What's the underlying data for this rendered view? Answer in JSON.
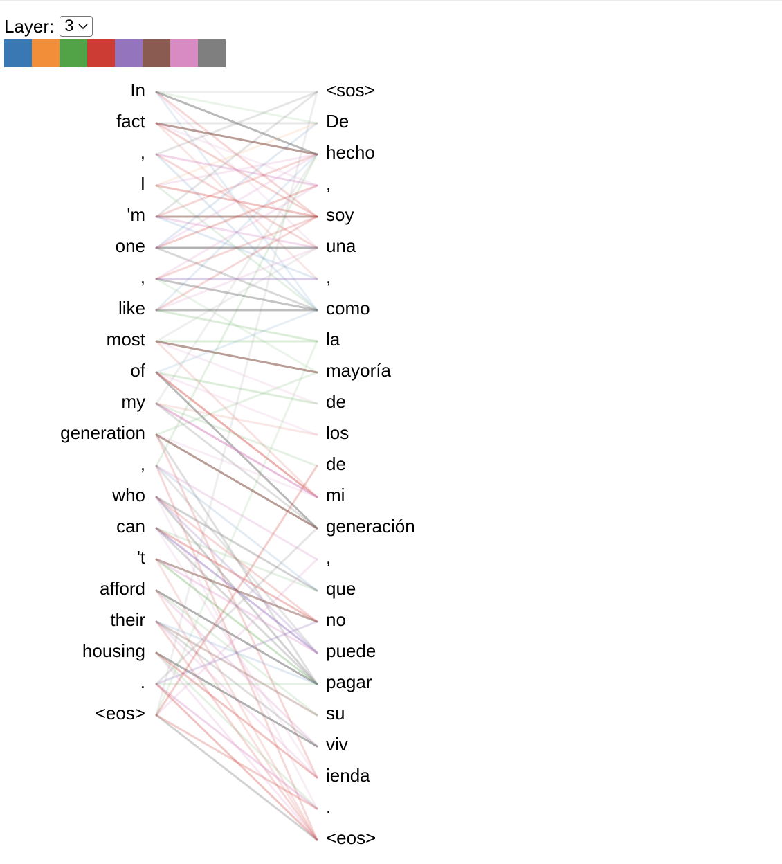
{
  "controls": {
    "layer_label": "Layer:",
    "layer_value": "3",
    "head_colors": [
      "#3a78b3",
      "#f28d3a",
      "#52a347",
      "#cd3b35",
      "#9474bc",
      "#8a5b51",
      "#d88ac2",
      "#7f7f7f"
    ]
  },
  "source_tokens": [
    "In",
    "fact",
    ",",
    "I",
    "'m",
    "one",
    ",",
    "like",
    "most",
    "of",
    "my",
    "generation",
    ",",
    "who",
    "can",
    "'t",
    "afford",
    "their",
    "housing",
    ".",
    "<eos>"
  ],
  "target_tokens": [
    "<sos>",
    "De",
    "hecho",
    ",",
    "soy",
    "una",
    ",",
    "como",
    "la",
    "mayoría",
    "de",
    "los",
    "de",
    "mi",
    "generación",
    ",",
    "que",
    "no",
    "puede",
    "pagar",
    "su",
    "viv",
    "ienda",
    ".",
    "<eos>"
  ],
  "attention_links": [
    {
      "s": 0,
      "t": 2,
      "w": 0.55,
      "c": "#7f7f7f"
    },
    {
      "s": 0,
      "t": 0,
      "w": 0.12,
      "c": "#7f7f7f"
    },
    {
      "s": 0,
      "t": 4,
      "w": 0.2,
      "c": "#cd3b35"
    },
    {
      "s": 0,
      "t": 5,
      "w": 0.15,
      "c": "#d88ac2"
    },
    {
      "s": 0,
      "t": 1,
      "w": 0.12,
      "c": "#52a347"
    },
    {
      "s": 0,
      "t": 7,
      "w": 0.12,
      "c": "#3a78b3"
    },
    {
      "s": 1,
      "t": 2,
      "w": 0.6,
      "c": "#8a5b51"
    },
    {
      "s": 1,
      "t": 1,
      "w": 0.18,
      "c": "#7f7f7f"
    },
    {
      "s": 1,
      "t": 4,
      "w": 0.22,
      "c": "#cd3b35"
    },
    {
      "s": 1,
      "t": 3,
      "w": 0.15,
      "c": "#d88ac2"
    },
    {
      "s": 1,
      "t": 6,
      "w": 0.12,
      "c": "#cd3b35"
    },
    {
      "s": 2,
      "t": 3,
      "w": 0.35,
      "c": "#d88ac2"
    },
    {
      "s": 2,
      "t": 0,
      "w": 0.2,
      "c": "#7f7f7f"
    },
    {
      "s": 2,
      "t": 5,
      "w": 0.2,
      "c": "#cd3b35"
    },
    {
      "s": 2,
      "t": 7,
      "w": 0.15,
      "c": "#3a78b3"
    },
    {
      "s": 3,
      "t": 4,
      "w": 0.3,
      "c": "#cd3b35"
    },
    {
      "s": 3,
      "t": 2,
      "w": 0.2,
      "c": "#d88ac2"
    },
    {
      "s": 3,
      "t": 7,
      "w": 0.15,
      "c": "#52a347"
    },
    {
      "s": 3,
      "t": 1,
      "w": 0.12,
      "c": "#f28d3a"
    },
    {
      "s": 4,
      "t": 4,
      "w": 0.55,
      "c": "#8a5b51"
    },
    {
      "s": 4,
      "t": 5,
      "w": 0.3,
      "c": "#d88ac2"
    },
    {
      "s": 4,
      "t": 0,
      "w": 0.2,
      "c": "#7f7f7f"
    },
    {
      "s": 4,
      "t": 2,
      "w": 0.2,
      "c": "#cd3b35"
    },
    {
      "s": 4,
      "t": 6,
      "w": 0.15,
      "c": "#3a78b3"
    },
    {
      "s": 5,
      "t": 5,
      "w": 0.6,
      "c": "#7f7f7f"
    },
    {
      "s": 5,
      "t": 7,
      "w": 0.3,
      "c": "#7f7f7f"
    },
    {
      "s": 5,
      "t": 3,
      "w": 0.25,
      "c": "#cd3b35"
    },
    {
      "s": 5,
      "t": 2,
      "w": 0.2,
      "c": "#d88ac2"
    },
    {
      "s": 5,
      "t": 1,
      "w": 0.15,
      "c": "#3a78b3"
    },
    {
      "s": 6,
      "t": 7,
      "w": 0.45,
      "c": "#7f7f7f"
    },
    {
      "s": 6,
      "t": 6,
      "w": 0.35,
      "c": "#9474bc"
    },
    {
      "s": 6,
      "t": 3,
      "w": 0.2,
      "c": "#d88ac2"
    },
    {
      "s": 6,
      "t": 4,
      "w": 0.2,
      "c": "#cd3b35"
    },
    {
      "s": 6,
      "t": 9,
      "w": 0.12,
      "c": "#52a347"
    },
    {
      "s": 7,
      "t": 7,
      "w": 0.5,
      "c": "#7f7f7f"
    },
    {
      "s": 7,
      "t": 8,
      "w": 0.2,
      "c": "#52a347"
    },
    {
      "s": 7,
      "t": 4,
      "w": 0.2,
      "c": "#cd3b35"
    },
    {
      "s": 7,
      "t": 5,
      "w": 0.18,
      "c": "#d88ac2"
    },
    {
      "s": 7,
      "t": 2,
      "w": 0.12,
      "c": "#3a78b3"
    },
    {
      "s": 8,
      "t": 9,
      "w": 0.6,
      "c": "#8a5b51"
    },
    {
      "s": 8,
      "t": 8,
      "w": 0.2,
      "c": "#52a347"
    },
    {
      "s": 8,
      "t": 10,
      "w": 0.15,
      "c": "#d88ac2"
    },
    {
      "s": 8,
      "t": 13,
      "w": 0.15,
      "c": "#cd3b35"
    },
    {
      "s": 8,
      "t": 5,
      "w": 0.12,
      "c": "#7f7f7f"
    },
    {
      "s": 9,
      "t": 14,
      "w": 0.55,
      "c": "#7f7f7f"
    },
    {
      "s": 9,
      "t": 13,
      "w": 0.4,
      "c": "#cd3b35"
    },
    {
      "s": 9,
      "t": 10,
      "w": 0.2,
      "c": "#52a347"
    },
    {
      "s": 9,
      "t": 11,
      "w": 0.15,
      "c": "#d88ac2"
    },
    {
      "s": 9,
      "t": 7,
      "w": 0.12,
      "c": "#3a78b3"
    },
    {
      "s": 10,
      "t": 13,
      "w": 0.55,
      "c": "#d88ac2"
    },
    {
      "s": 10,
      "t": 14,
      "w": 0.25,
      "c": "#7f7f7f"
    },
    {
      "s": 10,
      "t": 12,
      "w": 0.15,
      "c": "#52a347"
    },
    {
      "s": 10,
      "t": 11,
      "w": 0.12,
      "c": "#cd3b35"
    },
    {
      "s": 10,
      "t": 2,
      "w": 0.12,
      "c": "#7f7f7f"
    },
    {
      "s": 11,
      "t": 14,
      "w": 0.6,
      "c": "#8a5b51"
    },
    {
      "s": 11,
      "t": 19,
      "w": 0.25,
      "c": "#7f7f7f"
    },
    {
      "s": 11,
      "t": 22,
      "w": 0.2,
      "c": "#cd3b35"
    },
    {
      "s": 11,
      "t": 9,
      "w": 0.15,
      "c": "#52a347"
    },
    {
      "s": 11,
      "t": 13,
      "w": 0.15,
      "c": "#d88ac2"
    },
    {
      "s": 12,
      "t": 15,
      "w": 0.25,
      "c": "#d88ac2"
    },
    {
      "s": 12,
      "t": 18,
      "w": 0.2,
      "c": "#7f7f7f"
    },
    {
      "s": 12,
      "t": 24,
      "w": 0.2,
      "c": "#cd3b35"
    },
    {
      "s": 12,
      "t": 2,
      "w": 0.15,
      "c": "#52a347"
    },
    {
      "s": 12,
      "t": 16,
      "w": 0.15,
      "c": "#3a78b3"
    },
    {
      "s": 13,
      "t": 16,
      "w": 0.35,
      "c": "#7f7f7f"
    },
    {
      "s": 13,
      "t": 19,
      "w": 0.35,
      "c": "#7f7f7f"
    },
    {
      "s": 13,
      "t": 18,
      "w": 0.25,
      "c": "#9474bc"
    },
    {
      "s": 13,
      "t": 17,
      "w": 0.2,
      "c": "#cd3b35"
    },
    {
      "s": 13,
      "t": 23,
      "w": 0.15,
      "c": "#d88ac2"
    },
    {
      "s": 14,
      "t": 18,
      "w": 0.45,
      "c": "#9474bc"
    },
    {
      "s": 14,
      "t": 17,
      "w": 0.3,
      "c": "#cd3b35"
    },
    {
      "s": 14,
      "t": 19,
      "w": 0.3,
      "c": "#7f7f7f"
    },
    {
      "s": 14,
      "t": 22,
      "w": 0.15,
      "c": "#d88ac2"
    },
    {
      "s": 14,
      "t": 16,
      "w": 0.15,
      "c": "#52a347"
    },
    {
      "s": 15,
      "t": 17,
      "w": 0.5,
      "c": "#8a5b51"
    },
    {
      "s": 15,
      "t": 19,
      "w": 0.3,
      "c": "#52a347"
    },
    {
      "s": 15,
      "t": 18,
      "w": 0.3,
      "c": "#d88ac2"
    },
    {
      "s": 15,
      "t": 24,
      "w": 0.15,
      "c": "#cd3b35"
    },
    {
      "s": 16,
      "t": 19,
      "w": 0.6,
      "c": "#7f7f7f"
    },
    {
      "s": 16,
      "t": 21,
      "w": 0.25,
      "c": "#d88ac2"
    },
    {
      "s": 16,
      "t": 20,
      "w": 0.15,
      "c": "#52a347"
    },
    {
      "s": 16,
      "t": 24,
      "w": 0.15,
      "c": "#cd3b35"
    },
    {
      "s": 17,
      "t": 20,
      "w": 0.3,
      "c": "#8a5b51"
    },
    {
      "s": 17,
      "t": 21,
      "w": 0.25,
      "c": "#7f7f7f"
    },
    {
      "s": 17,
      "t": 22,
      "w": 0.2,
      "c": "#d88ac2"
    },
    {
      "s": 17,
      "t": 24,
      "w": 0.2,
      "c": "#cd3b35"
    },
    {
      "s": 17,
      "t": 19,
      "w": 0.15,
      "c": "#3a78b3"
    },
    {
      "s": 18,
      "t": 21,
      "w": 0.6,
      "c": "#7f7f7f"
    },
    {
      "s": 18,
      "t": 22,
      "w": 0.3,
      "c": "#cd3b35"
    },
    {
      "s": 18,
      "t": 24,
      "w": 0.2,
      "c": "#d88ac2"
    },
    {
      "s": 18,
      "t": 23,
      "w": 0.15,
      "c": "#52a347"
    },
    {
      "s": 19,
      "t": 23,
      "w": 0.35,
      "c": "#d88ac2"
    },
    {
      "s": 19,
      "t": 24,
      "w": 0.3,
      "c": "#cd3b35"
    },
    {
      "s": 19,
      "t": 17,
      "w": 0.25,
      "c": "#9474bc"
    },
    {
      "s": 19,
      "t": 14,
      "w": 0.2,
      "c": "#7f7f7f"
    },
    {
      "s": 19,
      "t": 19,
      "w": 0.15,
      "c": "#52a347"
    },
    {
      "s": 20,
      "t": 24,
      "w": 0.35,
      "c": "#7f7f7f"
    },
    {
      "s": 20,
      "t": 23,
      "w": 0.25,
      "c": "#cd3b35"
    },
    {
      "s": 20,
      "t": 12,
      "w": 0.25,
      "c": "#cd3b35"
    },
    {
      "s": 20,
      "t": 15,
      "w": 0.2,
      "c": "#d88ac2"
    },
    {
      "s": 20,
      "t": 0,
      "w": 0.12,
      "c": "#7f7f7f"
    },
    {
      "s": 20,
      "t": 8,
      "w": 0.12,
      "c": "#52a347"
    }
  ]
}
